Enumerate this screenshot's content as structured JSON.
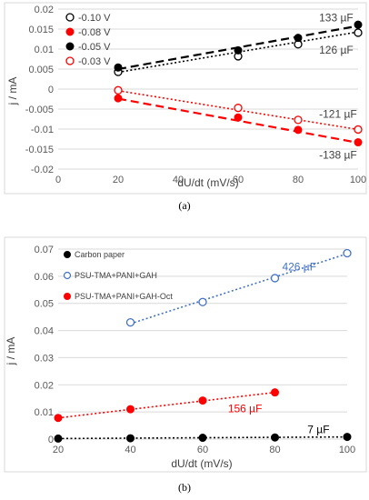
{
  "chart_data": [
    {
      "type": "scatter",
      "panel_label": "(a)",
      "xlabel": "dU/dt (mV/s)",
      "ylabel": "j / mA",
      "xlim": [
        0,
        100
      ],
      "ylim": [
        -0.02,
        0.02
      ],
      "x_ticks": [
        "0",
        "20",
        "40",
        "60",
        "80",
        "100"
      ],
      "y_ticks": [
        "-0.02",
        "-0.015",
        "-0.01",
        "-0.005",
        "0",
        "0.005",
        "0.01",
        "0.015",
        "0.02"
      ],
      "legend_position": "top-left",
      "grid": true,
      "series": [
        {
          "name": "-0.10 V",
          "color": "#000000",
          "marker": "open-circle",
          "line": "dotted",
          "x": [
            20,
            60,
            80,
            100
          ],
          "y": [
            0.0043,
            0.0082,
            0.0112,
            0.0141
          ],
          "fit": [
            0.0042,
            0.0143
          ]
        },
        {
          "name": "-0.08 V",
          "color": "#ff0000",
          "marker": "filled-circle",
          "line": "dashed",
          "x": [
            20,
            60,
            80,
            100
          ],
          "y": [
            -0.0023,
            -0.0071,
            -0.0102,
            -0.0133
          ],
          "fit": [
            -0.0024,
            -0.0134
          ]
        },
        {
          "name": "-0.05 V",
          "color": "#000000",
          "marker": "filled-circle",
          "line": "dashed",
          "x": [
            20,
            60,
            80,
            100
          ],
          "y": [
            0.0054,
            0.0097,
            0.0128,
            0.0161
          ],
          "fit": [
            0.005,
            0.0158
          ]
        },
        {
          "name": "-0.03 V",
          "color": "#ff0000",
          "marker": "open-circle",
          "line": "dotted",
          "x": [
            20,
            60,
            80,
            100
          ],
          "y": [
            -0.0003,
            -0.0047,
            -0.0077,
            -0.0101
          ],
          "fit": [
            -0.0004,
            -0.0101
          ]
        }
      ],
      "annotations": [
        {
          "text": "133 µF",
          "x": 87,
          "y": 0.0178,
          "color": "#404040"
        },
        {
          "text": "126 µF",
          "x": 87,
          "y": 0.0098,
          "color": "#404040"
        },
        {
          "text": "-121 µF",
          "x": 87,
          "y": -0.0062,
          "color": "#404040"
        },
        {
          "text": "-138 µF",
          "x": 87,
          "y": -0.0165,
          "color": "#404040"
        }
      ]
    },
    {
      "type": "scatter",
      "panel_label": "(b)",
      "xlabel": "dU/dt (mV/s)",
      "ylabel": "j / mA",
      "xlim": [
        20,
        100
      ],
      "ylim": [
        0,
        0.07
      ],
      "x_ticks": [
        "20",
        "40",
        "60",
        "80",
        "100"
      ],
      "y_ticks": [
        "0",
        "0.01",
        "0.02",
        "0.03",
        "0.04",
        "0.05",
        "0.06",
        "0.07"
      ],
      "legend_position": "top-left",
      "grid": true,
      "series": [
        {
          "name": "Carbon paper",
          "color": "#000000",
          "marker": "filled-circle",
          "line": "dotted",
          "x": [
            20,
            40,
            60,
            80,
            100
          ],
          "y": [
            0.0002,
            0.0003,
            0.0005,
            0.0006,
            0.0008
          ],
          "fit_x": [
            20,
            100
          ],
          "fit": [
            0.0002,
            0.0008
          ]
        },
        {
          "name": "PSU-TMA+PANI+GAH",
          "color": "#4472c4",
          "marker": "open-circle",
          "line": "dotted",
          "x": [
            40,
            60,
            80,
            100
          ],
          "y": [
            0.043,
            0.0505,
            0.0593,
            0.0685
          ],
          "fit_x": [
            40,
            100
          ],
          "fit": [
            0.0425,
            0.0683
          ]
        },
        {
          "name": "PSU-TMA+PANI+GAH-Oct",
          "color": "#ff0000",
          "marker": "filled-circle",
          "line": "dotted",
          "x": [
            20,
            40,
            60,
            80
          ],
          "y": [
            0.0078,
            0.011,
            0.0142,
            0.0172
          ],
          "fit_x": [
            20,
            80
          ],
          "fit": [
            0.0078,
            0.0172
          ]
        }
      ],
      "annotations": [
        {
          "text": "426 µF",
          "x": 82,
          "y": 0.0635,
          "color": "#4472c4"
        },
        {
          "text": "156 µF",
          "x": 67,
          "y": 0.0112,
          "color": "#ff0000"
        },
        {
          "text": "7 µF",
          "x": 89,
          "y": 0.0035,
          "color": "#000000"
        }
      ]
    }
  ]
}
